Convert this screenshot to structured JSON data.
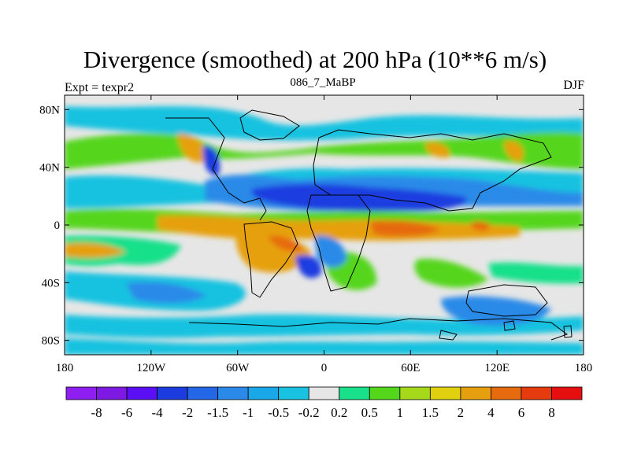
{
  "title": "Divergence (smoothed) at 200 hPa (10**6 m/s)",
  "left_label": "Expt = texpr2",
  "center_label": "086_7_MaBP",
  "right_label": "DJF",
  "y_axis": {
    "ticks": [
      "80N",
      "40N",
      "0",
      "40S",
      "80S"
    ],
    "lat_values": [
      80,
      40,
      0,
      -40,
      -80
    ],
    "range": [
      -90,
      90
    ]
  },
  "x_axis": {
    "ticks": [
      "180",
      "120W",
      "60W",
      "0",
      "60E",
      "120E",
      "180"
    ],
    "lon_values": [
      -180,
      -120,
      -60,
      0,
      60,
      120,
      180
    ],
    "range": [
      -180,
      180
    ]
  },
  "colorbar": {
    "labels": [
      "-8",
      "-6",
      "-4",
      "-2",
      "-1.5",
      "-1",
      "-0.5",
      "-0.2",
      "0.2",
      "0.5",
      "1",
      "1.5",
      "2",
      "4",
      "6",
      "8"
    ],
    "colors": [
      "#8f1ff0",
      "#7d19e3",
      "#5a0ff5",
      "#1d3ce0",
      "#2366e6",
      "#2b8ae8",
      "#19a7e8",
      "#19c2e0",
      "#e6e6e6",
      "#19e08a",
      "#54d61a",
      "#a6d91a",
      "#e0d00f",
      "#e6a00f",
      "#e66b0f",
      "#e63a0f",
      "#e60f0f"
    ]
  },
  "colors": {
    "background": "#e6e6e6",
    "coast": "#000000",
    "strong_negative": "#1d3ce0",
    "negative": "#2b8ae8",
    "weak_negative": "#19c2e0",
    "weak_positive": "#19e08a",
    "positive": "#54d61a",
    "strong_positive": "#e6a00f",
    "max_positive": "#e66b0f"
  }
}
